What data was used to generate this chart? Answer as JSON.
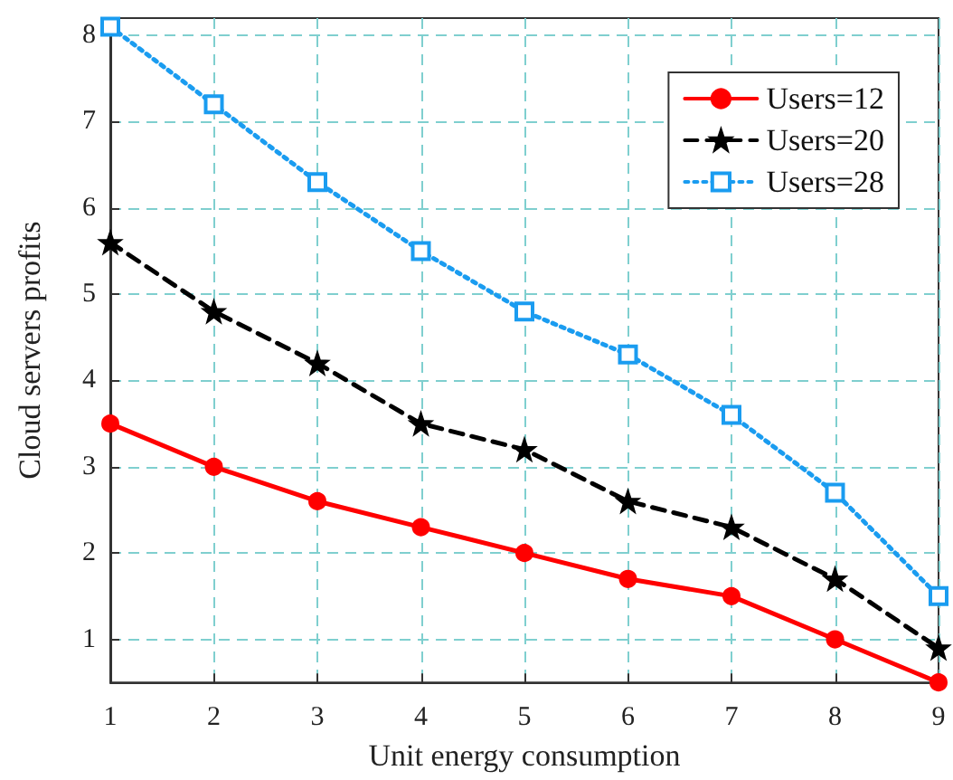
{
  "chart_data": {
    "type": "line",
    "xlabel": "Unit energy consumption",
    "ylabel": "Cloud servers profits",
    "x": [
      1,
      2,
      3,
      4,
      5,
      6,
      7,
      8,
      9
    ],
    "series": [
      {
        "name": "Users=12",
        "color": "#ff0000",
        "marker": "circle",
        "line_style": "solid",
        "values": [
          3.5,
          3.0,
          2.6,
          2.3,
          2.0,
          1.7,
          1.5,
          1.0,
          0.5
        ]
      },
      {
        "name": "Users=20",
        "color": "#000000",
        "marker": "star",
        "line_style": "dashed",
        "values": [
          5.6,
          4.8,
          4.2,
          3.5,
          3.2,
          2.6,
          2.3,
          1.7,
          0.9
        ]
      },
      {
        "name": "Users=28",
        "color": "#1a9cf0",
        "marker": "square",
        "line_style": "dotted",
        "values": [
          8.1,
          7.2,
          6.3,
          5.5,
          4.8,
          4.3,
          3.6,
          2.7,
          1.5
        ]
      }
    ],
    "xlim": [
      1,
      9
    ],
    "xticks": [
      1,
      2,
      3,
      4,
      5,
      6,
      7,
      8,
      9
    ],
    "ylim": [
      0.5,
      8.2
    ],
    "yticks": [
      1,
      2,
      3,
      4,
      5,
      6,
      7,
      8
    ],
    "grid": true,
    "legend": "top right"
  }
}
